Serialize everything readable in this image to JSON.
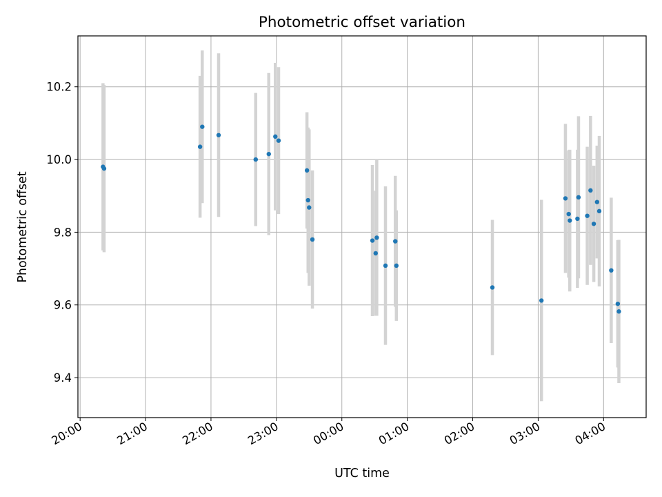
{
  "chart_data": {
    "type": "scatter",
    "title": "Photometric offset variation",
    "xlabel": "UTC time",
    "ylabel": "Photometric offset",
    "x_tick_labels": [
      "20:00",
      "21:00",
      "22:00",
      "23:00",
      "00:00",
      "01:00",
      "02:00",
      "03:00",
      "04:00"
    ],
    "y_ticks": [
      9.4,
      9.6,
      9.8,
      10.0,
      10.2
    ],
    "y_tick_labels": [
      "9.4",
      "9.6",
      "9.8",
      "10.0",
      "10.2"
    ],
    "xlim": [
      "19:58",
      "04:39"
    ],
    "ylim": [
      9.29,
      10.34
    ],
    "grid": true,
    "colors": {
      "point": "#1f77b4",
      "errorbar": "#d3d3d3",
      "grid": "#b0b0b0"
    },
    "series": [
      {
        "points": [
          {
            "t": "20:21",
            "y": 9.98,
            "err": 0.23
          },
          {
            "t": "20:22",
            "y": 9.975,
            "err": 0.23
          },
          {
            "t": "21:50",
            "y": 10.035,
            "err": 0.195
          },
          {
            "t": "21:52",
            "y": 10.09,
            "err": 0.21
          },
          {
            "t": "22:07",
            "y": 10.067,
            "err": 0.225
          },
          {
            "t": "22:41",
            "y": 10.0,
            "err": 0.183
          },
          {
            "t": "22:53",
            "y": 10.015,
            "err": 0.223
          },
          {
            "t": "22:59",
            "y": 10.063,
            "err": 0.203
          },
          {
            "t": "23:02",
            "y": 10.052,
            "err": 0.202
          },
          {
            "t": "23:28",
            "y": 9.97,
            "err": 0.16
          },
          {
            "t": "23:29",
            "y": 9.888,
            "err": 0.2
          },
          {
            "t": "23:30",
            "y": 9.868,
            "err": 0.215
          },
          {
            "t": "23:33",
            "y": 9.78,
            "err": 0.19
          },
          {
            "t": "00:28",
            "y": 9.777,
            "err": 0.208
          },
          {
            "t": "00:31",
            "y": 9.742,
            "err": 0.172
          },
          {
            "t": "00:32",
            "y": 9.785,
            "err": 0.215
          },
          {
            "t": "00:40",
            "y": 9.708,
            "err": 0.218
          },
          {
            "t": "00:49",
            "y": 9.775,
            "err": 0.18
          },
          {
            "t": "00:50",
            "y": 9.708,
            "err": 0.152
          },
          {
            "t": "02:18",
            "y": 9.648,
            "err": 0.186
          },
          {
            "t": "03:03",
            "y": 9.612,
            "err": 0.277
          },
          {
            "t": "03:25",
            "y": 9.893,
            "err": 0.205
          },
          {
            "t": "03:28",
            "y": 9.85,
            "err": 0.175
          },
          {
            "t": "03:29",
            "y": 9.832,
            "err": 0.195
          },
          {
            "t": "03:36",
            "y": 9.837,
            "err": 0.19
          },
          {
            "t": "03:37",
            "y": 9.896,
            "err": 0.223
          },
          {
            "t": "03:45",
            "y": 9.845,
            "err": 0.19
          },
          {
            "t": "03:48",
            "y": 9.915,
            "err": 0.205
          },
          {
            "t": "03:51",
            "y": 9.823,
            "err": 0.16
          },
          {
            "t": "03:54",
            "y": 9.883,
            "err": 0.155
          },
          {
            "t": "03:56",
            "y": 9.858,
            "err": 0.207
          },
          {
            "t": "04:07",
            "y": 9.695,
            "err": 0.2
          },
          {
            "t": "04:13",
            "y": 9.603,
            "err": 0.175
          },
          {
            "t": "04:14",
            "y": 9.582,
            "err": 0.197
          }
        ]
      }
    ]
  }
}
